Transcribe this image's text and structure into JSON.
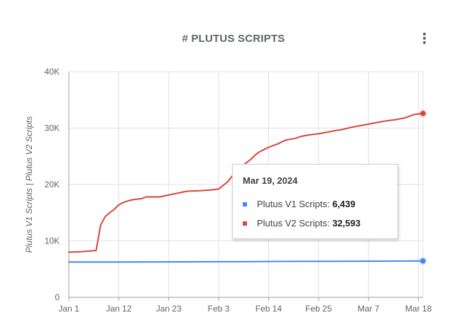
{
  "header": {
    "title": "# PLUTUS SCRIPTS",
    "menu_icon": "more-vert-icon"
  },
  "tooltip": {
    "date": "Mar 19, 2024",
    "rows": [
      {
        "label": "Plutus V1 Scripts: ",
        "value": "6,439"
      },
      {
        "label": "Plutus V2 Scripts: ",
        "value": "32,593"
      }
    ]
  },
  "chart_data": {
    "type": "line",
    "title": "# PLUTUS SCRIPTS",
    "xlabel": "",
    "ylabel": "Plutus V1 Scripts | Plutus V2 Scripts",
    "ylim": [
      0,
      40000
    ],
    "yticks": [
      0,
      10000,
      20000,
      30000,
      40000
    ],
    "ytick_labels": [
      "0",
      "10K",
      "20K",
      "30K",
      "40K"
    ],
    "xticks": [
      "Jan 1",
      "Jan 12",
      "Jan 23",
      "Feb 3",
      "Feb 14",
      "Feb 25",
      "Mar 7",
      "Mar 18"
    ],
    "xlim": [
      "2024-01-01",
      "2024-03-19"
    ],
    "grid": true,
    "series": [
      {
        "name": "Plutus V1 Scripts",
        "color": "#4285f4",
        "x": [
          "2024-01-01",
          "2024-01-10",
          "2024-01-20",
          "2024-01-30",
          "2024-02-09",
          "2024-02-19",
          "2024-02-29",
          "2024-03-09",
          "2024-03-19"
        ],
        "values": [
          6250,
          6260,
          6280,
          6300,
          6330,
          6360,
          6390,
          6420,
          6439
        ]
      },
      {
        "name": "Plutus V2 Scripts",
        "color": "#db4437",
        "x": [
          "2024-01-01",
          "2024-01-04",
          "2024-01-07",
          "2024-01-08",
          "2024-01-09",
          "2024-01-10",
          "2024-01-11",
          "2024-01-12",
          "2024-01-13",
          "2024-01-14",
          "2024-01-15",
          "2024-01-17",
          "2024-01-18",
          "2024-01-20",
          "2024-01-21",
          "2024-01-24",
          "2024-01-27",
          "2024-01-30",
          "2024-02-02",
          "2024-02-03",
          "2024-02-05",
          "2024-02-06",
          "2024-02-07",
          "2024-02-08",
          "2024-02-09",
          "2024-02-10",
          "2024-02-11",
          "2024-02-12",
          "2024-02-13",
          "2024-02-14",
          "2024-02-15",
          "2024-02-16",
          "2024-02-17",
          "2024-02-18",
          "2024-02-20",
          "2024-02-21",
          "2024-02-23",
          "2024-02-24",
          "2024-02-25",
          "2024-02-27",
          "2024-02-29",
          "2024-03-01",
          "2024-03-03",
          "2024-03-05",
          "2024-03-07",
          "2024-03-09",
          "2024-03-11",
          "2024-03-13",
          "2024-03-15",
          "2024-03-16",
          "2024-03-17",
          "2024-03-19"
        ],
        "values": [
          8000,
          8100,
          8300,
          12800,
          14300,
          15000,
          15600,
          16400,
          16800,
          17100,
          17300,
          17500,
          17800,
          17800,
          17800,
          18300,
          18800,
          18900,
          19100,
          19200,
          20500,
          21500,
          22200,
          23100,
          23800,
          24400,
          25200,
          25800,
          26200,
          26600,
          26900,
          27200,
          27600,
          27900,
          28200,
          28500,
          28800,
          28900,
          29000,
          29300,
          29600,
          29700,
          30100,
          30400,
          30700,
          31000,
          31300,
          31500,
          31800,
          32100,
          32400,
          32593
        ]
      }
    ]
  }
}
